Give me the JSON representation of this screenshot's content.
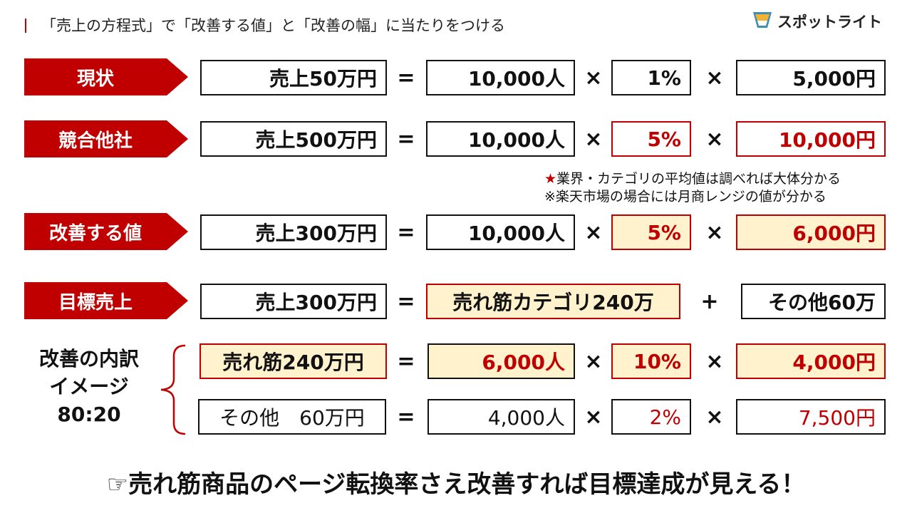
{
  "header": {
    "title": "「売上の方程式」で「改善する値」と「改善の幅」に当たりをつける",
    "logo_text": "スポットライト"
  },
  "rows": {
    "current": {
      "label": "現状",
      "sales": "売上50万円",
      "visitors": "10,000人",
      "rate": "1%",
      "price": "5,000円"
    },
    "competitor": {
      "label": "競合他社",
      "sales": "売上500万円",
      "visitors": "10,000人",
      "rate": "5%",
      "price": "10,000円"
    },
    "improve": {
      "label": "改善する値",
      "sales": "売上300万円",
      "visitors": "10,000人",
      "rate": "5%",
      "price": "6,000円"
    },
    "target": {
      "label": "目標売上",
      "sales": "売上300万円",
      "part1": "売れ筋カテゴリ240万",
      "part2": "その他60万"
    },
    "breakdown": {
      "label_line1": "改善の内訳",
      "label_line2": "イメージ",
      "label_line3": "80:20",
      "main": {
        "sales": "売れ筋240万円",
        "visitors": "6,000人",
        "rate": "10%",
        "price": "4,000円"
      },
      "other": {
        "sales": "その他　60万円",
        "visitors": "4,000人",
        "rate": "2%",
        "price": "7,500円"
      }
    }
  },
  "operators": {
    "equals": "=",
    "times": "×",
    "plus": "+"
  },
  "notes": {
    "star": "★",
    "line1": "業界・カテゴリの平均値は調べれば大体分かる",
    "line2": "※楽天市場の場合には月商レンジの値が分かる"
  },
  "bottom_message": "☞売れ筋商品のページ転換率さえ改善すれば目標達成が見える！",
  "colors": {
    "accent_red": "#c00000",
    "highlight_tan": "#fff2cc",
    "border_dark": "#111111"
  }
}
